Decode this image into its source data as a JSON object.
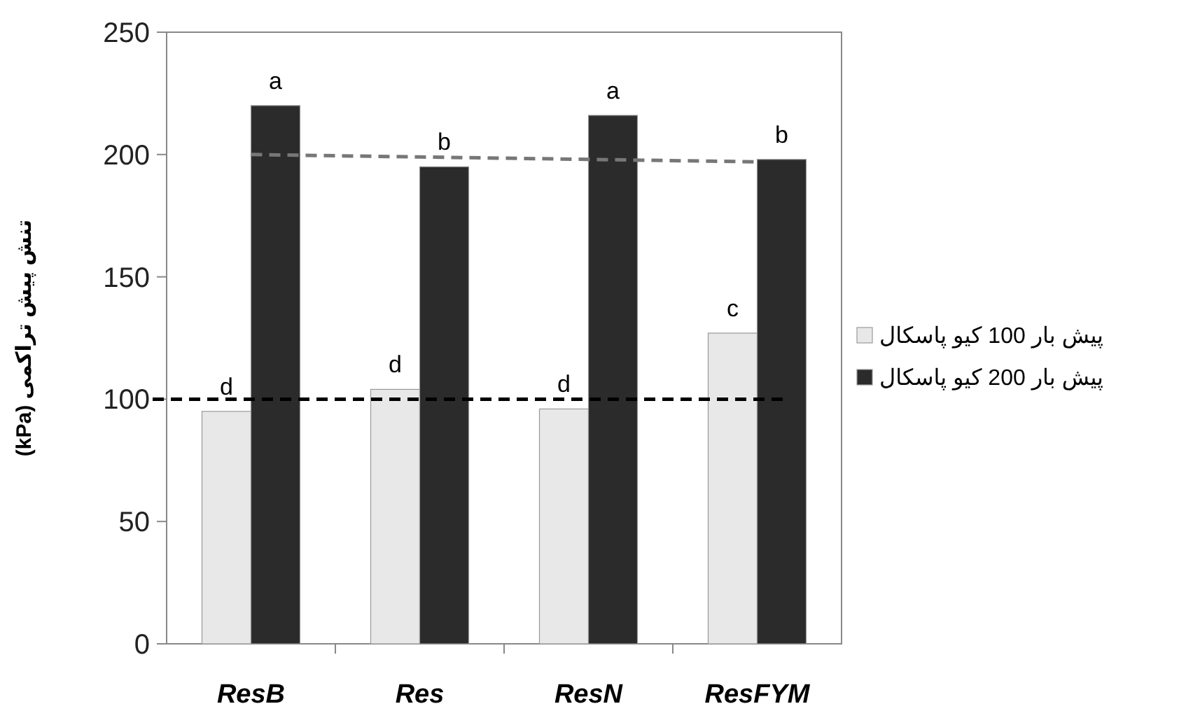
{
  "chart_data": {
    "type": "bar",
    "ylabel": "تنش پیش تراکمی (kPa)",
    "categories": [
      "ResB",
      "Res",
      "ResN",
      "ResFYM"
    ],
    "series": [
      {
        "name": "پیش بار 100 کیو پاسکال",
        "color": "#e8e8e8",
        "values": [
          95,
          104,
          96,
          127
        ],
        "value_labels": [
          "d",
          "d",
          "d",
          "c"
        ]
      },
      {
        "name": "پیش بار 200 کیو پاسکال",
        "color": "#2b2b2b",
        "values": [
          220,
          195,
          216,
          198
        ],
        "value_labels": [
          "a",
          "b",
          "a",
          "b"
        ]
      },
      {
        "type": "line",
        "color": "#777777",
        "line_style": "dashed",
        "values": [
          200,
          199,
          198,
          197
        ]
      }
    ],
    "ref_lines": [
      {
        "axis": "y",
        "value": 100,
        "color": "#000000",
        "line_style": "dashed"
      }
    ],
    "ylim": [
      0,
      250
    ],
    "yticks": [
      0,
      50,
      100,
      150,
      200,
      250
    ],
    "grid": false,
    "legend": "right"
  }
}
